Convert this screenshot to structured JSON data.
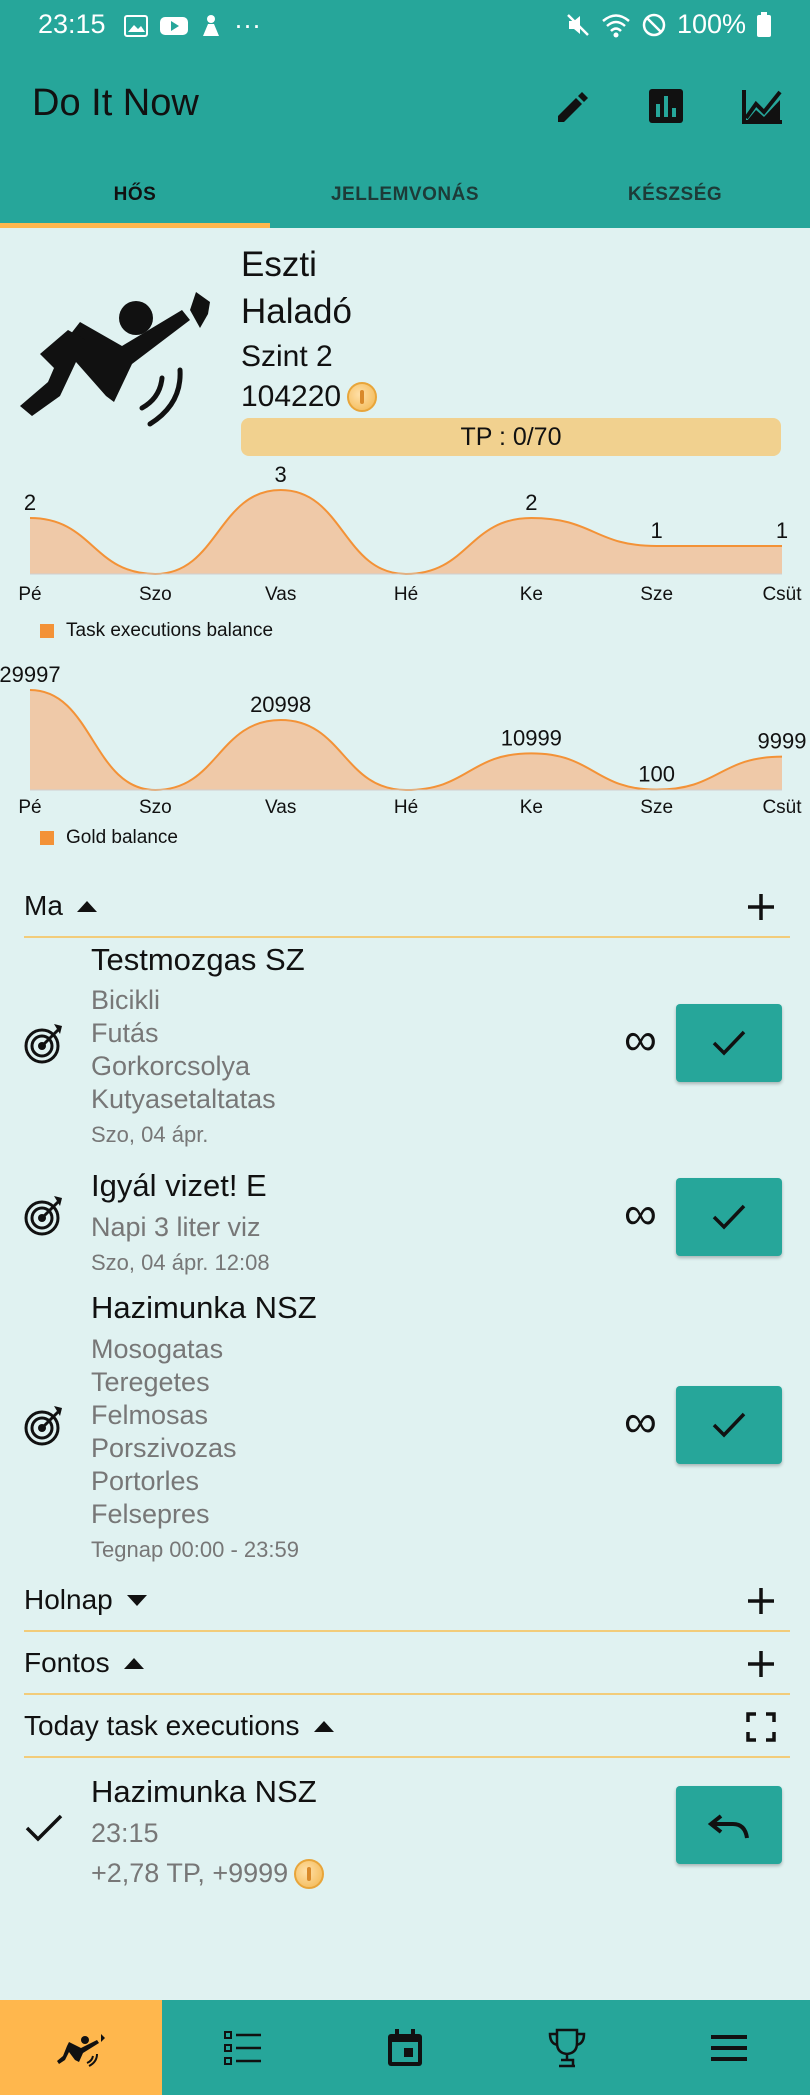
{
  "status_bar": {
    "time": "23:15",
    "dots": "···",
    "battery": "100%"
  },
  "app": {
    "title": "Do It Now"
  },
  "toolbar": {
    "edit_icon": "pencil-icon",
    "stats_icon": "bar-chart-icon",
    "trend_icon": "line-chart-icon"
  },
  "tabs": [
    {
      "label": "HŐS",
      "active": true
    },
    {
      "label": "JELLEMVONÁS",
      "active": false
    },
    {
      "label": "KÉSZSÉG",
      "active": false
    }
  ],
  "hero": {
    "name": "Eszti",
    "rank": "Haladó",
    "level": "Szint 2",
    "gold": "104220",
    "tp_label": "TP : 0/70",
    "tp_fraction": 0.0
  },
  "chart_data": [
    {
      "type": "area",
      "categories": [
        "Pé",
        "Szo",
        "Vas",
        "Hé",
        "Ke",
        "Sze",
        "Csüt"
      ],
      "series": [
        {
          "name": "Task executions balance",
          "values": [
            2,
            0,
            3,
            0,
            2,
            1,
            1
          ]
        }
      ],
      "labels": [
        "2",
        "",
        "3",
        "",
        "2",
        "1",
        "1"
      ],
      "color": "#f39237",
      "fill": "#efc9a8",
      "grid": false,
      "legend": "bottom-left"
    },
    {
      "type": "area",
      "categories": [
        "Pé",
        "Szo",
        "Vas",
        "Hé",
        "Ke",
        "Sze",
        "Csüt"
      ],
      "series": [
        {
          "name": "Gold balance",
          "values": [
            29997,
            0,
            20998,
            0,
            10999,
            100,
            9999
          ]
        }
      ],
      "labels": [
        "29997",
        "",
        "20998",
        "",
        "10999",
        "100",
        "9999"
      ],
      "color": "#f39237",
      "fill": "#efc9a8",
      "grid": false,
      "legend": "bottom-left"
    }
  ],
  "sections": {
    "today": {
      "label": "Ma",
      "expanded": true
    },
    "tomorrow": {
      "label": "Holnap",
      "expanded": false
    },
    "important": {
      "label": "Fontos",
      "expanded": true
    },
    "executions": {
      "label": "Today task executions",
      "expanded": true
    }
  },
  "tasks": [
    {
      "title": "Testmozgas SZ",
      "lines": [
        "Bicikli",
        "Futás",
        "Gorkorcsolya",
        "Kutyasetaltatas"
      ],
      "date": "Szo, 04 ápr.",
      "repeat": "∞"
    },
    {
      "title": "Igyál vizet! E",
      "lines": [
        "Napi 3 liter viz"
      ],
      "date": "Szo, 04 ápr. 12:08",
      "repeat": "∞"
    },
    {
      "title": "Hazimunka NSZ",
      "lines": [
        "Mosogatas",
        "Teregetes",
        "Felmosas",
        "Porszivozas",
        "Portorles",
        "Felsepres"
      ],
      "date": "Tegnap 00:00 - 23:59",
      "repeat": "∞"
    }
  ],
  "executions": [
    {
      "title": "Hazimunka NSZ",
      "time": "23:15",
      "reward": "+2,78 TP, +9999"
    }
  ],
  "nav": [
    {
      "icon": "hero-icon",
      "active": true
    },
    {
      "icon": "list-icon",
      "active": false
    },
    {
      "icon": "calendar-icon",
      "active": false
    },
    {
      "icon": "trophy-icon",
      "active": false
    },
    {
      "icon": "menu-icon",
      "active": false
    }
  ]
}
